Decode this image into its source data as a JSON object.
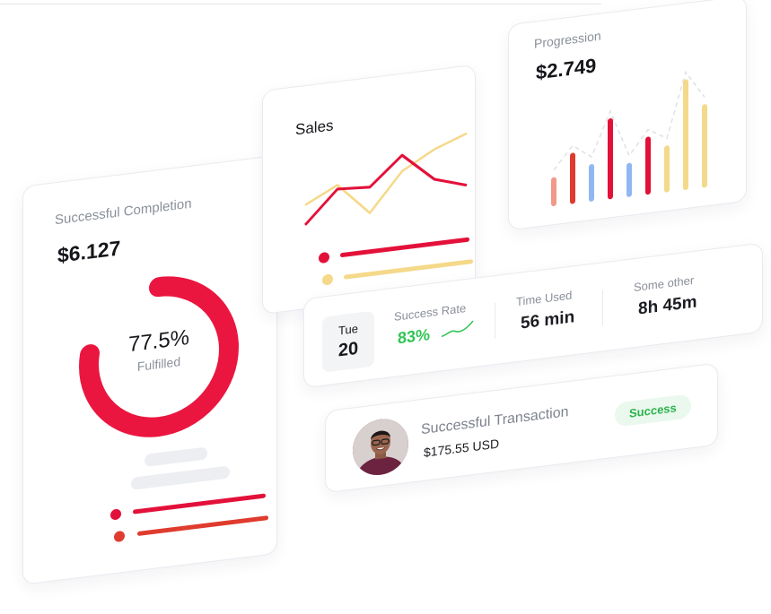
{
  "completion": {
    "label": "Successful Completion",
    "amount": "$6.127",
    "percent_text": "77.5%",
    "percent_value": 77.5,
    "sub": "Fulfilled",
    "ring_color": "#ea1640",
    "legend_colors": [
      "#e3113a",
      "#df3b2e"
    ]
  },
  "sales": {
    "label": "Sales",
    "colors": {
      "red": "#e3113a",
      "yellow": "#f5d98a"
    },
    "chart_data": {
      "type": "line",
      "series": [
        {
          "values": [
            10,
            42,
            40,
            68,
            40,
            30
          ]
        },
        {
          "values": [
            30,
            46,
            14,
            52,
            70,
            82
          ]
        }
      ]
    }
  },
  "progress": {
    "label": "Progression",
    "amount": "$2.749",
    "chart_data": {
      "type": "bar",
      "bars": [
        {
          "value": 34,
          "color": "#f19a8a"
        },
        {
          "value": 60,
          "color": "#df3b2e"
        },
        {
          "value": 44,
          "color": "#8fb8f2"
        },
        {
          "value": 95,
          "color": "#e3113a"
        },
        {
          "value": 40,
          "color": "#8fb8f2"
        },
        {
          "value": 68,
          "color": "#e3113a"
        },
        {
          "value": 55,
          "color": "#f5d98a"
        },
        {
          "value": 130,
          "color": "#f5d98a"
        },
        {
          "value": 98,
          "color": "#f5d98a"
        }
      ]
    }
  },
  "stats": {
    "date": {
      "day": "Tue",
      "num": "20"
    },
    "success_rate": {
      "label": "Success Rate",
      "value": "83%",
      "color": "#2fc553"
    },
    "time_used": {
      "label": "Time Used",
      "value": "56 min"
    },
    "other": {
      "label": "Some other",
      "value": "8h 45m"
    }
  },
  "transaction": {
    "title": "Successful Transaction",
    "amount": "$175.55 USD",
    "badge": "Success"
  }
}
